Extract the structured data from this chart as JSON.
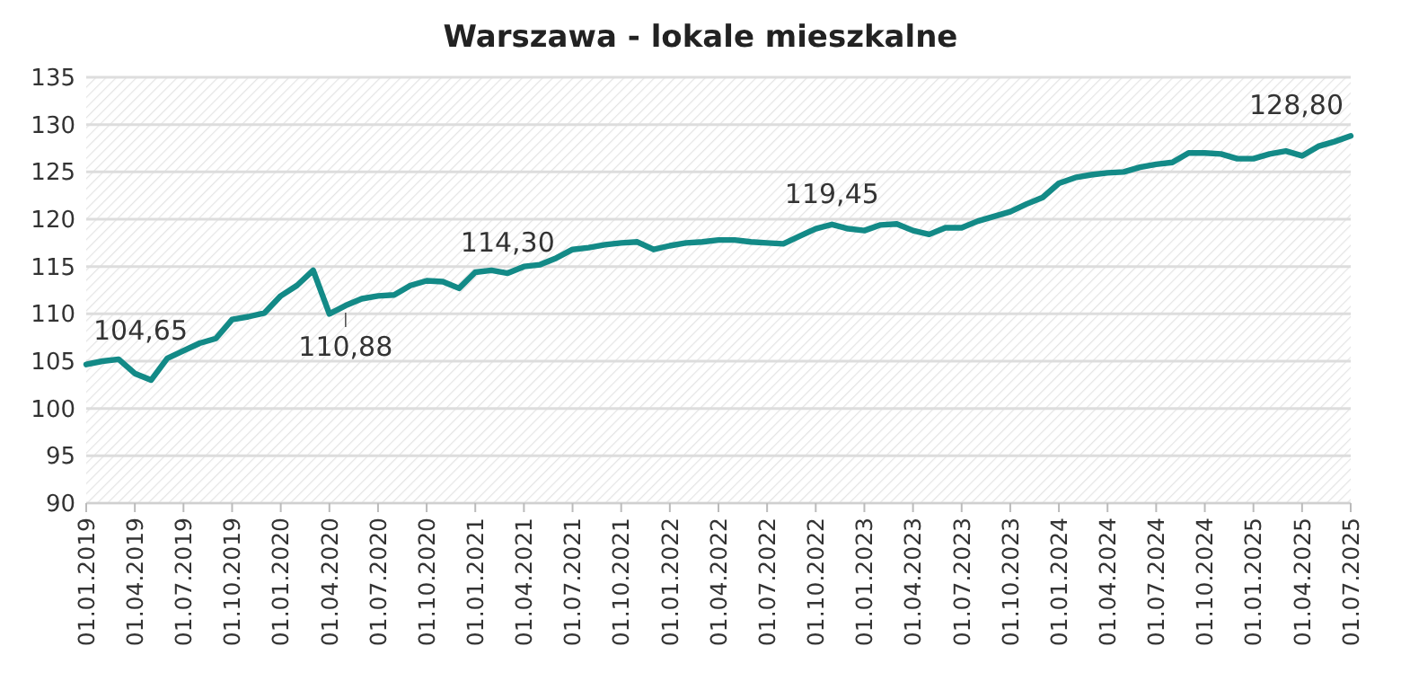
{
  "chart_data": {
    "type": "line",
    "title": "Warszawa - lokale mieszkalne",
    "categories": [
      "01.01.2019",
      null,
      null,
      "01.04.2019",
      null,
      null,
      "01.07.2019",
      null,
      null,
      "01.10.2019",
      null,
      null,
      "01.01.2020",
      null,
      null,
      "01.04.2020",
      null,
      null,
      "01.07.2020",
      null,
      null,
      "01.10.2020",
      null,
      null,
      "01.01.2021",
      null,
      null,
      "01.04.2021",
      null,
      null,
      "01.07.2021",
      null,
      null,
      "01.10.2021",
      null,
      null,
      "01.01.2022",
      null,
      null,
      "01.04.2022",
      null,
      null,
      "01.07.2022",
      null,
      null,
      "01.10.2022",
      null,
      null,
      "01.01.2023",
      null,
      null,
      "01.04.2023",
      null,
      null,
      "01.07.2023",
      null,
      null,
      "01.10.2023",
      null,
      null,
      "01.01.2024",
      null,
      null,
      "01.04.2024",
      null,
      null,
      "01.07.2024",
      null,
      null,
      "01.10.2024",
      null,
      null,
      "01.01.2025",
      null,
      null,
      "01.04.2025",
      null,
      null,
      "01.07.2025"
    ],
    "series": [
      {
        "color": "#138a87",
        "values": [
          104.65,
          105.0,
          105.2,
          103.7,
          103.0,
          105.3,
          106.1,
          106.9,
          107.4,
          109.4,
          109.7,
          110.1,
          111.9,
          113.0,
          114.6,
          110.0,
          110.88,
          111.6,
          111.9,
          112.0,
          113.0,
          113.5,
          113.4,
          112.7,
          114.4,
          114.6,
          114.3,
          115.0,
          115.2,
          115.9,
          116.8,
          117.0,
          117.3,
          117.5,
          117.6,
          116.8,
          117.2,
          117.5,
          117.6,
          117.8,
          117.8,
          117.6,
          117.5,
          117.4,
          118.2,
          119.0,
          119.45,
          119.0,
          118.8,
          119.4,
          119.5,
          118.8,
          118.4,
          119.1,
          119.1,
          119.8,
          120.3,
          120.8,
          121.6,
          122.3,
          123.8,
          124.4,
          124.7,
          124.9,
          125.0,
          125.5,
          125.8,
          126.0,
          127.0,
          127.0,
          126.9,
          126.4,
          126.4,
          126.9,
          127.2,
          126.7,
          127.7,
          128.2,
          128.8
        ],
        "value_labels": [
          "104,65",
          null,
          null,
          null,
          null,
          null,
          null,
          null,
          null,
          null,
          null,
          null,
          null,
          null,
          null,
          null,
          "110,88",
          null,
          null,
          null,
          null,
          null,
          null,
          null,
          null,
          null,
          "114,30",
          null,
          null,
          null,
          null,
          null,
          null,
          null,
          null,
          null,
          null,
          null,
          null,
          null,
          null,
          null,
          null,
          null,
          null,
          null,
          "119,45",
          null,
          null,
          null,
          null,
          null,
          null,
          null,
          null,
          null,
          null,
          null,
          null,
          null,
          null,
          null,
          null,
          null,
          null,
          null,
          null,
          null,
          null,
          null,
          null,
          null,
          null,
          null,
          null,
          null,
          null,
          null,
          "128,80"
        ]
      }
    ],
    "ylim": [
      90,
      135
    ],
    "yticks": [
      90,
      95,
      100,
      105,
      110,
      115,
      120,
      125,
      130,
      135
    ],
    "grid": "y",
    "marker": "none",
    "line_style": "solid"
  }
}
